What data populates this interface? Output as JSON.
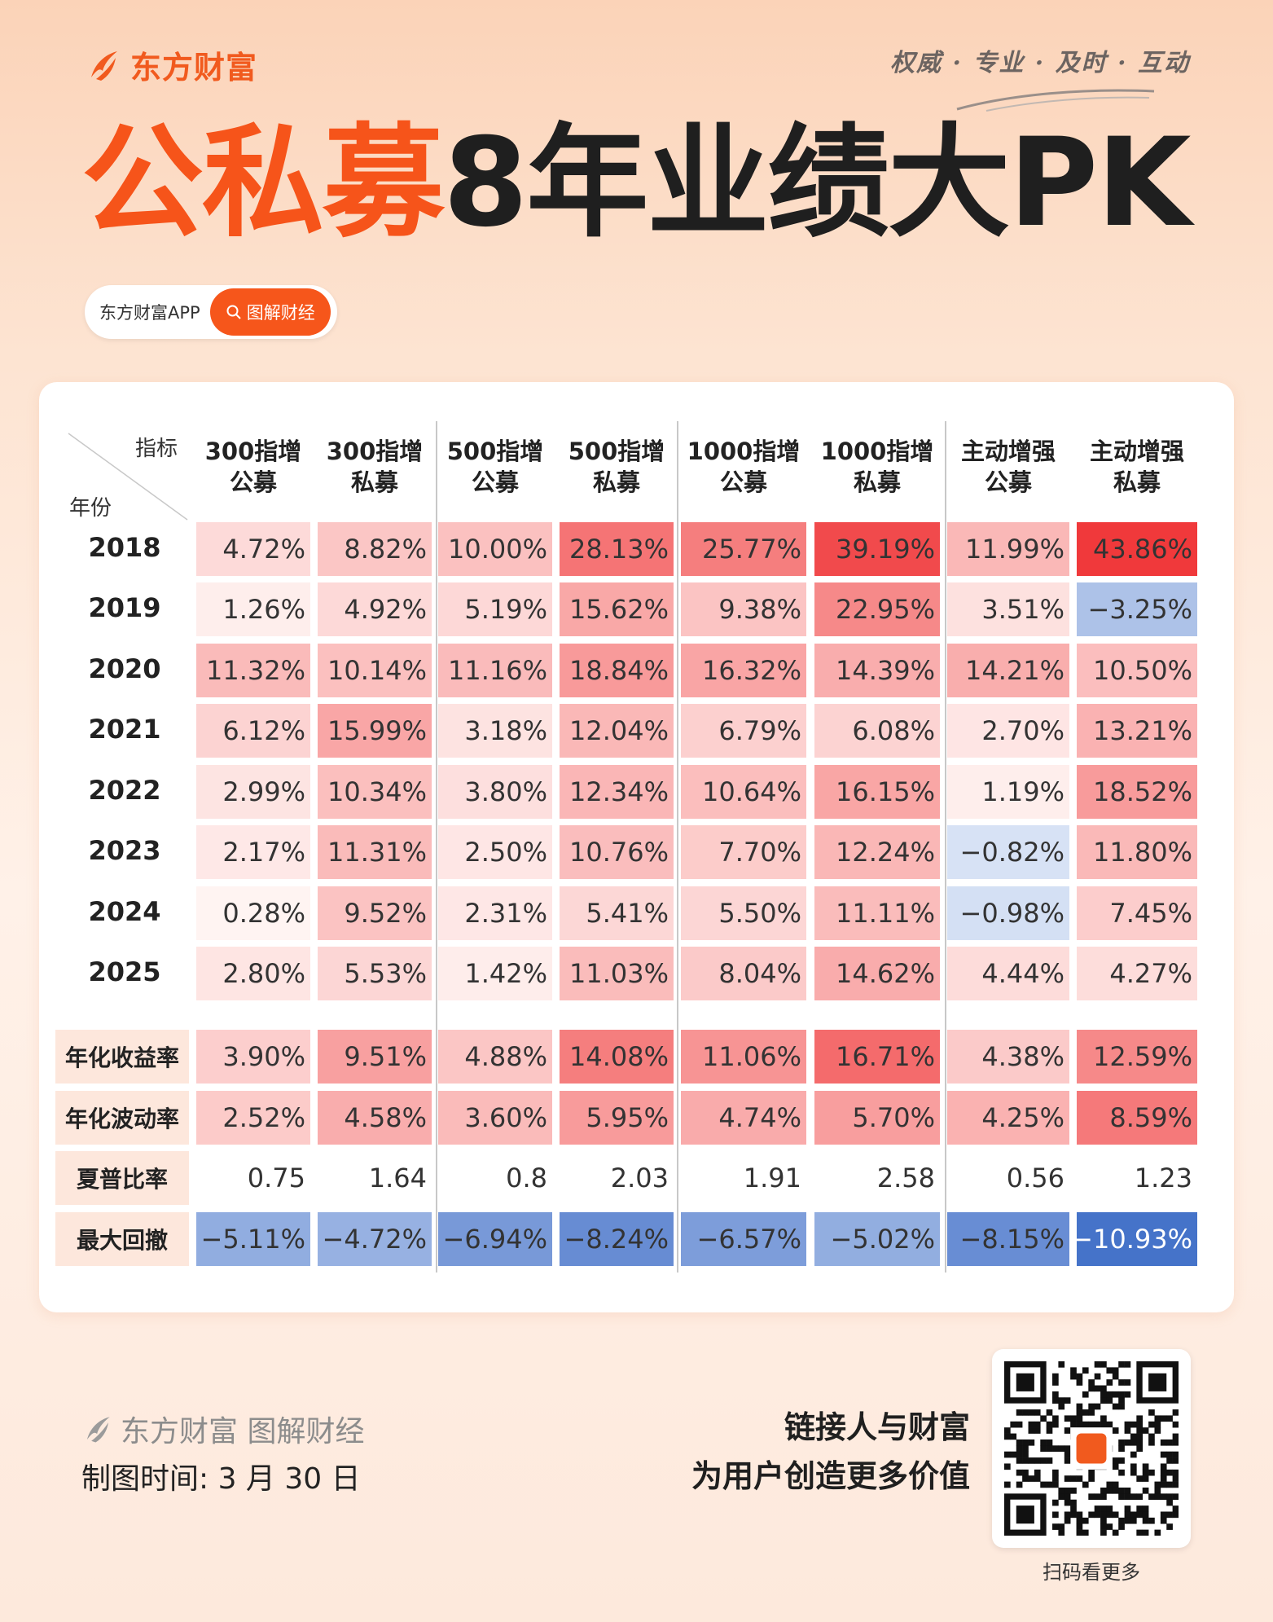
{
  "brand": {
    "name": "东方财富",
    "slogan": "权威 · 专业 · 及时 · 互动"
  },
  "title": {
    "part1": "公私募",
    "part2": "8年业绩大PK"
  },
  "pill": {
    "app": "东方财富APP",
    "button": "图解财经"
  },
  "table": {
    "corner_top": "指标",
    "corner_bottom": "年份",
    "columns": [
      {
        "line1": "300指增",
        "line2": "公募"
      },
      {
        "line1": "300指增",
        "line2": "私募"
      },
      {
        "line1": "500指增",
        "line2": "公募"
      },
      {
        "line1": "500指增",
        "line2": "私募"
      },
      {
        "line1": "1000指增",
        "line2": "公募"
      },
      {
        "line1": "1000指增",
        "line2": "私募"
      },
      {
        "line1": "主动增强",
        "line2": "公募"
      },
      {
        "line1": "主动增强",
        "line2": "私募"
      }
    ],
    "years": [
      {
        "label": "2018",
        "cells": [
          "4.72%",
          "8.82%",
          "10.00%",
          "28.13%",
          "25.77%",
          "39.19%",
          "11.99%",
          "43.86%"
        ]
      },
      {
        "label": "2019",
        "cells": [
          "1.26%",
          "4.92%",
          "5.19%",
          "15.62%",
          "9.38%",
          "22.95%",
          "3.51%",
          "−3.25%"
        ]
      },
      {
        "label": "2020",
        "cells": [
          "11.32%",
          "10.14%",
          "11.16%",
          "18.84%",
          "16.32%",
          "14.39%",
          "14.21%",
          "10.50%"
        ]
      },
      {
        "label": "2021",
        "cells": [
          "6.12%",
          "15.99%",
          "3.18%",
          "12.04%",
          "6.79%",
          "6.08%",
          "2.70%",
          "13.21%"
        ]
      },
      {
        "label": "2022",
        "cells": [
          "2.99%",
          "10.34%",
          "3.80%",
          "12.34%",
          "10.64%",
          "16.15%",
          "1.19%",
          "18.52%"
        ]
      },
      {
        "label": "2023",
        "cells": [
          "2.17%",
          "11.31%",
          "2.50%",
          "10.76%",
          "7.70%",
          "12.24%",
          "−0.82%",
          "11.80%"
        ]
      },
      {
        "label": "2024",
        "cells": [
          "0.28%",
          "9.52%",
          "2.31%",
          "5.41%",
          "5.50%",
          "11.11%",
          "−0.98%",
          "7.45%"
        ]
      },
      {
        "label": "2025",
        "cells": [
          "2.80%",
          "5.53%",
          "1.42%",
          "11.03%",
          "8.04%",
          "14.62%",
          "4.44%",
          "4.27%"
        ]
      }
    ],
    "metrics": [
      {
        "label": "年化收益率",
        "cells": [
          "3.90%",
          "9.51%",
          "4.88%",
          "14.08%",
          "11.06%",
          "16.71%",
          "4.38%",
          "12.59%"
        ]
      },
      {
        "label": "年化波动率",
        "cells": [
          "2.52%",
          "4.58%",
          "3.60%",
          "5.95%",
          "4.74%",
          "5.70%",
          "4.25%",
          "8.59%"
        ]
      },
      {
        "label": "夏普比率",
        "cells": [
          "0.75",
          "1.64",
          "0.8",
          "2.03",
          "1.91",
          "2.58",
          "0.56",
          "1.23"
        ]
      },
      {
        "label": "最大回撤",
        "cells": [
          "−5.11%",
          "−4.72%",
          "−6.94%",
          "−8.24%",
          "−6.57%",
          "−5.02%",
          "−8.15%",
          "−10.93%"
        ]
      }
    ]
  },
  "colors": {
    "accent": "#f6541a",
    "positive_max": "#f0383a",
    "negative_max": "#4472c9"
  },
  "footer": {
    "logo_text": "东方财富 图解财经",
    "date": "制图时间: 3 月 30 日",
    "slogan1": "链接人与财富",
    "slogan2": "为用户创造更多价值",
    "qr_caption": "扫码看更多"
  }
}
